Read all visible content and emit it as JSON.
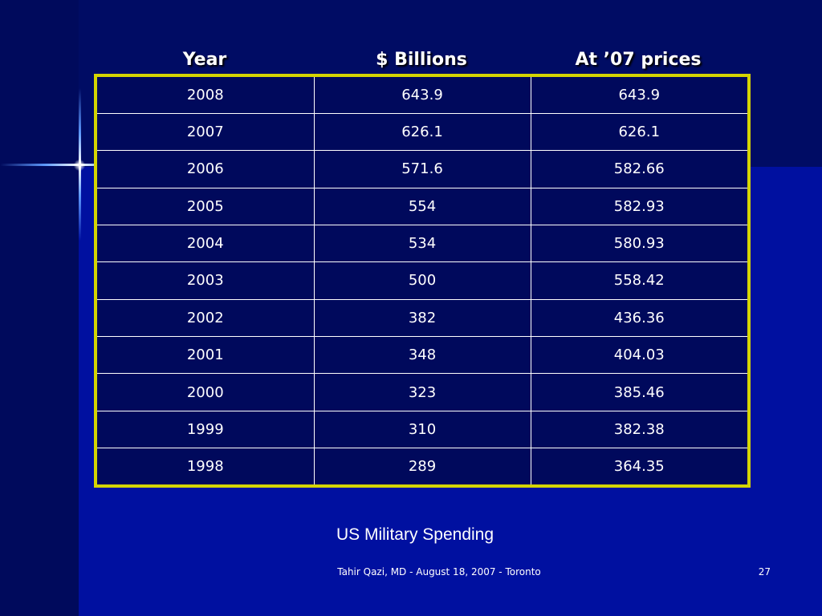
{
  "table": {
    "headers": [
      "Year",
      "$ Billions",
      "At ’07 prices"
    ],
    "rows": [
      [
        "2008",
        "643.9",
        "643.9"
      ],
      [
        "2007",
        "626.1",
        "626.1"
      ],
      [
        "2006",
        "571.6",
        "582.66"
      ],
      [
        "2005",
        "554",
        "582.93"
      ],
      [
        "2004",
        "534",
        "580.93"
      ],
      [
        "2003",
        "500",
        "558.42"
      ],
      [
        "2002",
        "382",
        "436.36"
      ],
      [
        "2001",
        "348",
        "404.03"
      ],
      [
        "2000",
        "323",
        "385.46"
      ],
      [
        "1999",
        "310",
        "382.38"
      ],
      [
        "1998",
        "289",
        "364.35"
      ]
    ]
  },
  "caption": "US Military Spending",
  "footer": "Tahir Qazi, MD - August 18, 2007 - Toronto",
  "page_number": "27",
  "colors": {
    "background": "#0010a0",
    "table_border": "#d4d400",
    "text": "#ffffff"
  },
  "icons": [
    "sparkle-icon"
  ]
}
